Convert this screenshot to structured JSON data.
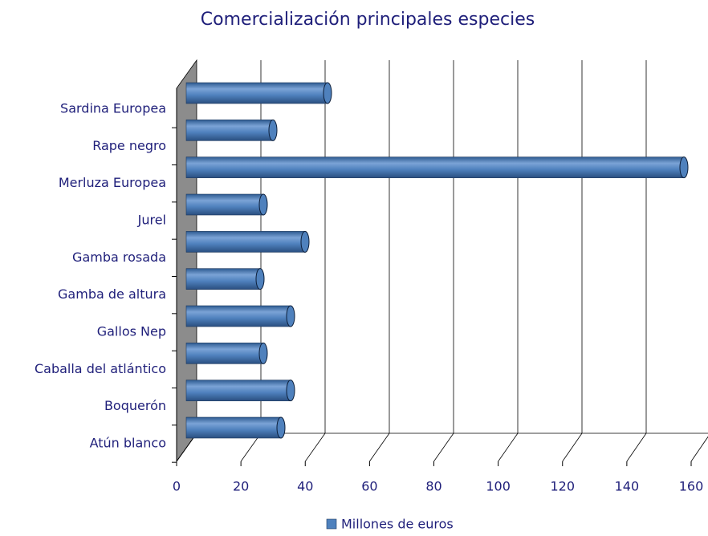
{
  "chart_data": {
    "type": "bar",
    "orientation": "horizontal",
    "title": "Comercialización principales especies",
    "categories": [
      "Atún blanco",
      "Boquerón",
      "Caballa del atlántico",
      "Gallos Nep",
      "Gamba de altura",
      "Gamba rosada",
      "Jurel",
      "Merluza Europea",
      "Rape negro",
      "Sardina Europea"
    ],
    "series": [
      {
        "name": "Millones de euros",
        "color": "#4f81bd",
        "values": [
          29.5,
          32.5,
          24,
          32.5,
          23,
          37,
          24,
          155,
          27,
          44
        ]
      }
    ],
    "xlim": [
      0,
      160
    ],
    "xticks": [
      0,
      20,
      40,
      60,
      80,
      100,
      120,
      140,
      160
    ],
    "grid": true,
    "legend": "bottom"
  }
}
